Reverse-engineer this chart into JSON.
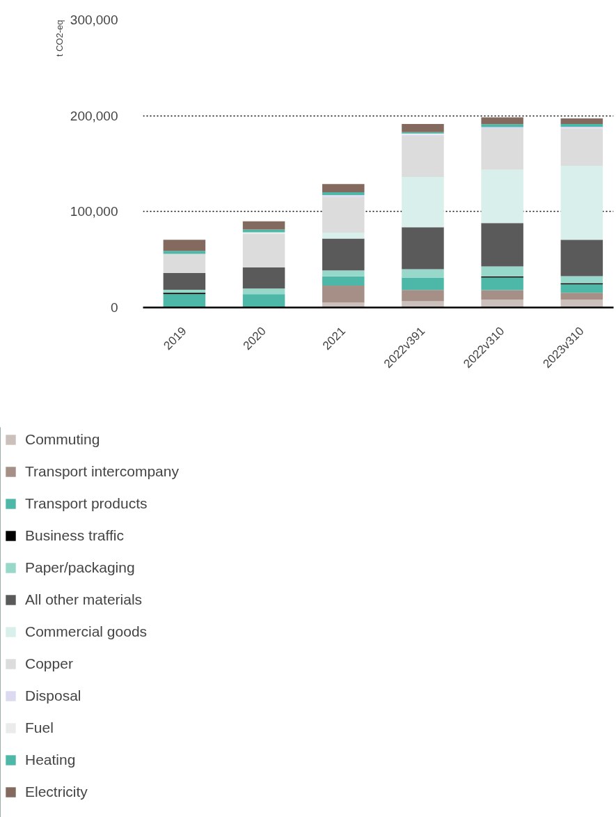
{
  "chart_data": {
    "type": "bar",
    "stacked": true,
    "ylabel": "t CO2-eq",
    "categories": [
      "2019",
      "2020",
      "2021",
      "2022v391",
      "2022v310",
      "2023v310"
    ],
    "ylim": [
      0,
      300000
    ],
    "yticks": [
      {
        "value": 0,
        "label": "0"
      },
      {
        "value": 100000,
        "label": "100,000"
      },
      {
        "value": 200000,
        "label": "200,000"
      },
      {
        "value": 300000,
        "label": "300,000"
      }
    ],
    "grid": "y",
    "legend": "bottom",
    "series": [
      {
        "name": "Commuting",
        "color": "#cbc0bb",
        "values": [
          0,
          null,
          5100,
          6500,
          8200,
          8200
        ]
      },
      {
        "name": "Transport intercompany",
        "color": "#a68f86",
        "values": [
          0,
          0,
          17700,
          11900,
          9900,
          7300
        ]
      },
      {
        "name": "Transport products",
        "color": "#4db8a8",
        "values": [
          14000,
          14000,
          9700,
          12800,
          13100,
          8700
        ]
      },
      {
        "name": "Business traffic",
        "color": "#000000",
        "values": [
          1500,
          0,
          0,
          0,
          1200,
          1200
        ]
      },
      {
        "name": "Paper/packaging",
        "color": "#98d8cb",
        "values": [
          3000,
          5800,
          6100,
          8700,
          10400,
          7300
        ]
      },
      {
        "name": "All other materials",
        "color": "#5a5a5a",
        "values": [
          17500,
          22000,
          33400,
          43900,
          45300,
          38000
        ]
      },
      {
        "name": "Commercial goods",
        "color": "#d9efeb",
        "values": [
          0,
          0,
          6100,
          52400,
          55500,
          77100
        ]
      },
      {
        "name": "Copper",
        "color": "#dcdcdc",
        "values": [
          20000,
          35000,
          37300,
          42200,
          42700,
          38800
        ]
      },
      {
        "name": "Disposal",
        "color": "#dcdaf0",
        "values": [
          null,
          0,
          1900,
          1500,
          1900,
          1900
        ]
      },
      {
        "name": "Fuel",
        "color": "#ebebeb",
        "values": [
          0,
          1700,
          0,
          1500,
          0,
          0
        ]
      },
      {
        "name": "Heating",
        "color": "#4db8a8",
        "values": [
          3000,
          2900,
          2900,
          1500,
          3100,
          2900
        ]
      },
      {
        "name": "Electricity",
        "color": "#846a5e",
        "values": [
          11600,
          8500,
          8500,
          8500,
          7000,
          5800
        ]
      }
    ]
  }
}
